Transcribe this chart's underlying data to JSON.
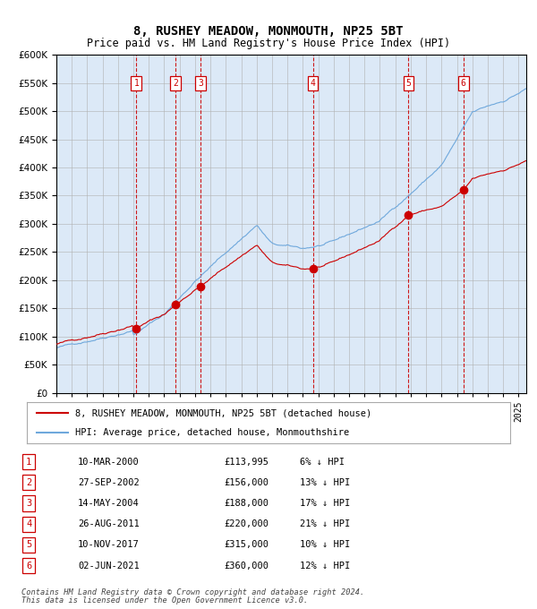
{
  "title": "8, RUSHEY MEADOW, MONMOUTH, NP25 5BT",
  "subtitle": "Price paid vs. HM Land Registry's House Price Index (HPI)",
  "footer1": "Contains HM Land Registry data © Crown copyright and database right 2024.",
  "footer2": "This data is licensed under the Open Government Licence v3.0.",
  "legend_line1": "8, RUSHEY MEADOW, MONMOUTH, NP25 5BT (detached house)",
  "legend_line2": "HPI: Average price, detached house, Monmouthshire",
  "hpi_color": "#6fa8dc",
  "price_color": "#cc0000",
  "background_color": "#dce9f7",
  "plot_bg": "#ffffff",
  "ylim": [
    0,
    600000
  ],
  "yticks": [
    0,
    50000,
    100000,
    150000,
    200000,
    250000,
    300000,
    350000,
    400000,
    450000,
    500000,
    550000,
    600000
  ],
  "sale_events": [
    {
      "num": 1,
      "date": "10-MAR-2000",
      "price": 113995,
      "pct": "6%",
      "year_x": 2000.19
    },
    {
      "num": 2,
      "date": "27-SEP-2002",
      "price": 156000,
      "pct": "13%",
      "year_x": 2002.74
    },
    {
      "num": 3,
      "date": "14-MAY-2004",
      "price": 188000,
      "pct": "17%",
      "year_x": 2004.37
    },
    {
      "num": 4,
      "date": "26-AUG-2011",
      "price": 220000,
      "pct": "21%",
      "year_x": 2011.65
    },
    {
      "num": 5,
      "date": "10-NOV-2017",
      "price": 315000,
      "pct": "10%",
      "year_x": 2017.86
    },
    {
      "num": 6,
      "date": "02-JUN-2021",
      "price": 360000,
      "pct": "12%",
      "year_x": 2021.42
    }
  ],
  "xmin": 1995,
  "xmax": 2025.5,
  "grid_color": "#b0b0b0",
  "dashed_color": "#cc0000",
  "box_color": "#cc0000"
}
